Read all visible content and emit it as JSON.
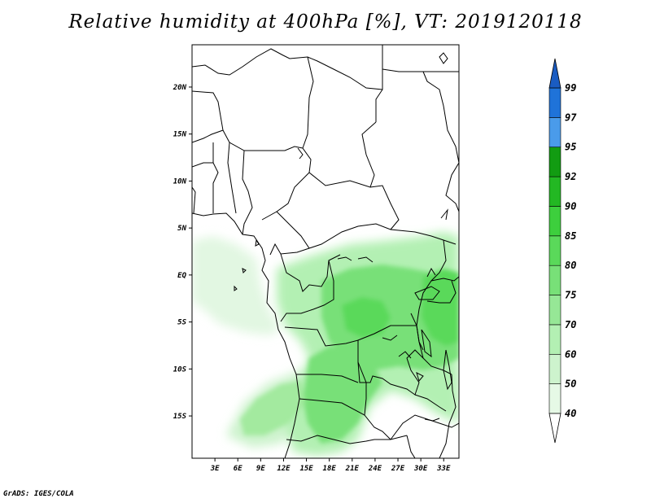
{
  "title": "Relative humidity at 400hPa [%], VT: 2019120118",
  "credit": "GrADS: IGES/COLA",
  "map": {
    "lon_range": [
      0,
      35
    ],
    "lat_range": [
      -19.5,
      24.5
    ],
    "lon_ticks": [
      "3E",
      "6E",
      "9E",
      "12E",
      "15E",
      "18E",
      "21E",
      "24E",
      "27E",
      "30E",
      "33E"
    ],
    "lat_ticks": [
      "20N",
      "15N",
      "10N",
      "5N",
      "EQ",
      "5S",
      "10S",
      "15S"
    ],
    "border_color": "#000000"
  },
  "colorbar": {
    "labels": [
      "40",
      "50",
      "60",
      "70",
      "75",
      "80",
      "85",
      "90",
      "92",
      "95",
      "97",
      "99"
    ],
    "colors": [
      "#ffffff",
      "#e6f9e6",
      "#cdf3cd",
      "#b3f0b3",
      "#96e796",
      "#78e078",
      "#5ad95a",
      "#3dcf3d",
      "#23b823",
      "#129c12",
      "#4a9bea",
      "#1f73d9",
      "#1a5cc2"
    ]
  }
}
